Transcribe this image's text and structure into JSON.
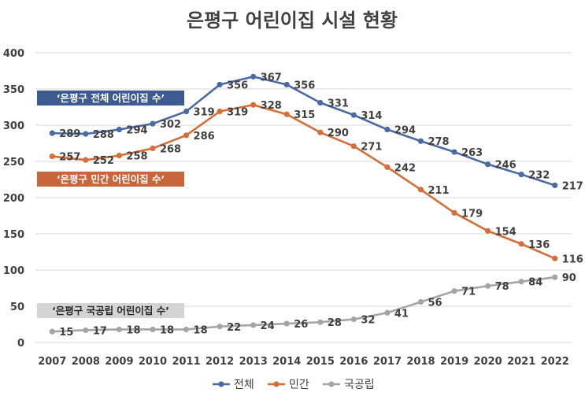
{
  "chart_data": {
    "type": "line",
    "title": "은평구 어린이집 시설 현황",
    "categories": [
      "2007",
      "2008",
      "2009",
      "2010",
      "2011",
      "2012",
      "2013",
      "2014",
      "2015",
      "2016",
      "2017",
      "2018",
      "2019",
      "2020",
      "2021",
      "2022"
    ],
    "series": [
      {
        "name": "전체",
        "color": "#4a6aa5",
        "values": [
          289,
          288,
          294,
          302,
          319,
          356,
          367,
          356,
          331,
          314,
          294,
          278,
          263,
          246,
          232,
          217
        ]
      },
      {
        "name": "민간",
        "color": "#d46f3a",
        "values": [
          257,
          252,
          258,
          268,
          286,
          319,
          328,
          315,
          290,
          271,
          242,
          211,
          179,
          154,
          136,
          116
        ]
      },
      {
        "name": "국공립",
        "color": "#a5a5a5",
        "values": [
          15,
          17,
          18,
          18,
          18,
          22,
          24,
          26,
          28,
          32,
          41,
          56,
          71,
          78,
          84,
          90
        ]
      }
    ],
    "yticks": [
      "0",
      "50",
      "100",
      "150",
      "200",
      "250",
      "300",
      "350",
      "400"
    ],
    "ylim": [
      0,
      400
    ],
    "grid": true,
    "legend_position": "bottom",
    "annotations": [
      {
        "text": "‘은평구 전체 어린이집 수’",
        "bg": "#3d5a91",
        "fg": "#ffffff"
      },
      {
        "text": "‘은평구 민간 어린이집 수’",
        "bg": "#c9653a",
        "fg": "#ffffff"
      },
      {
        "text": "‘은평구 국공립 어린이집 수’",
        "bg": "#d4d4d4",
        "fg": "#262626"
      }
    ]
  }
}
